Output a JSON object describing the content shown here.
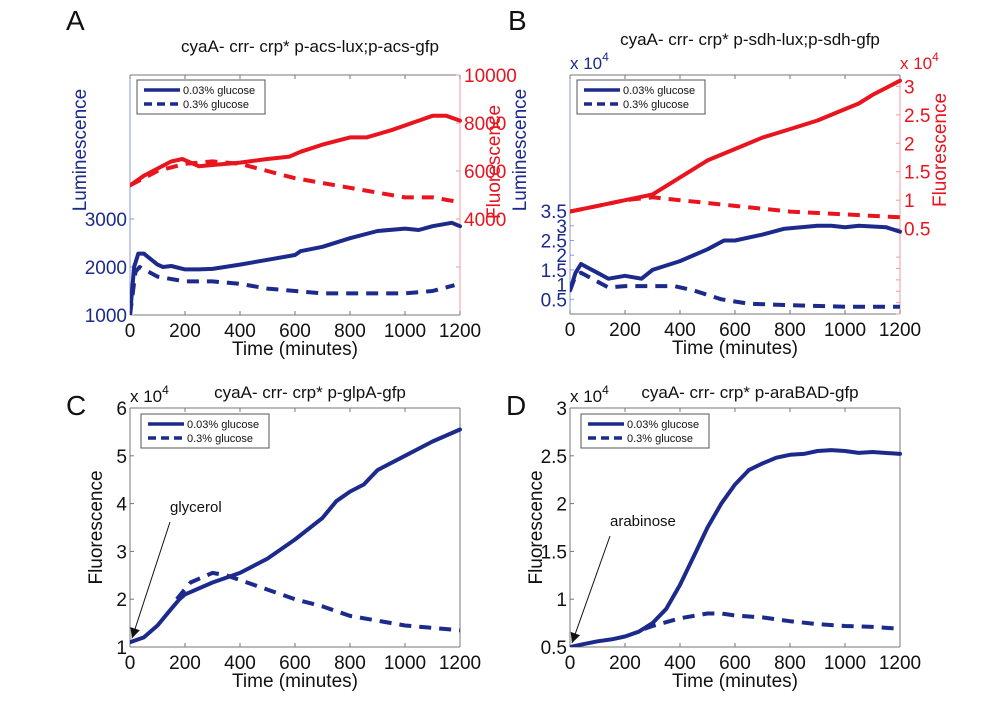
{
  "colors": {
    "blue": "#1c2a8c",
    "red": "#e8141e",
    "axis": "#555555",
    "black": "#111111"
  },
  "chart_data": [
    {
      "id": "A",
      "type": "line",
      "panel_label": "A",
      "title": "cyaA- crr- crp* p-acs-lux;p-acs-gfp",
      "xlabel": "Time (minutes)",
      "xlim": [
        0,
        1200
      ],
      "xticks": [
        0,
        200,
        400,
        600,
        800,
        1000,
        1200
      ],
      "xtick_labels": [
        "0",
        "200",
        "400",
        "600",
        "800",
        "1000",
        "1200"
      ],
      "left_axis": {
        "label": "Luminescence",
        "color": "blue",
        "ylim": [
          1000,
          6000
        ],
        "ticks": [
          1000,
          2000,
          3000
        ],
        "tick_labels": [
          "1000",
          "2000",
          "3000"
        ],
        "exponent": ""
      },
      "right_axis": {
        "label": "Fluorescence",
        "color": "red",
        "ylim": [
          0,
          10000
        ],
        "ticks": [
          2000,
          4000,
          6000,
          8000,
          10000
        ],
        "tick_labels": [
          "",
          "4000",
          "6000",
          "8000",
          "10000"
        ],
        "exponent": ""
      },
      "legend": {
        "position": "top-left",
        "entries": [
          "0.03% glucose",
          "0.3% glucose"
        ]
      },
      "series": [
        {
          "name": "0.03% glucose luminescence",
          "axis": "left",
          "color": "blue",
          "style": "solid",
          "x": [
            0,
            15,
            30,
            50,
            100,
            120,
            150,
            200,
            250,
            300,
            400,
            500,
            600,
            620,
            700,
            800,
            900,
            1000,
            1050,
            1100,
            1170,
            1200
          ],
          "y": [
            1000,
            2000,
            2280,
            2280,
            2050,
            2000,
            2020,
            1950,
            1950,
            1960,
            2050,
            2150,
            2250,
            2330,
            2420,
            2600,
            2750,
            2800,
            2770,
            2850,
            2920,
            2850
          ]
        },
        {
          "name": "0.3% glucose luminescence",
          "axis": "left",
          "color": "blue",
          "style": "dashed",
          "x": [
            0,
            20,
            35,
            100,
            200,
            300,
            400,
            500,
            600,
            700,
            800,
            900,
            1000,
            1100,
            1180
          ],
          "y": [
            1000,
            1900,
            2000,
            1800,
            1700,
            1700,
            1650,
            1550,
            1500,
            1450,
            1450,
            1450,
            1450,
            1500,
            1620
          ]
        },
        {
          "name": "0.03% glucose fluorescence",
          "axis": "right",
          "color": "red",
          "style": "solid",
          "x": [
            0,
            50,
            100,
            150,
            190,
            220,
            250,
            300,
            400,
            500,
            580,
            620,
            700,
            800,
            860,
            950,
            1050,
            1100,
            1150,
            1200
          ],
          "y": [
            5400,
            5800,
            6100,
            6400,
            6500,
            6350,
            6200,
            6250,
            6350,
            6500,
            6600,
            6800,
            7100,
            7400,
            7400,
            7700,
            8100,
            8300,
            8300,
            8100
          ]
        },
        {
          "name": "0.3% glucose fluorescence",
          "axis": "right",
          "color": "red",
          "style": "dashed",
          "x": [
            0,
            100,
            200,
            300,
            400,
            500,
            600,
            700,
            800,
            900,
            1000,
            1100,
            1200
          ],
          "y": [
            5400,
            6000,
            6300,
            6400,
            6300,
            6000,
            5700,
            5500,
            5300,
            5100,
            4900,
            4900,
            4700
          ]
        }
      ],
      "annotation": null
    },
    {
      "id": "B",
      "type": "line",
      "panel_label": "B",
      "title": "cyaA- crr- crp* p-sdh-lux;p-sdh-gfp",
      "xlabel": "Time (minutes)",
      "xlim": [
        0,
        1200
      ],
      "xticks": [
        0,
        200,
        400,
        600,
        800,
        1000,
        1200
      ],
      "xtick_labels": [
        "0",
        "200",
        "400",
        "600",
        "800",
        "1000",
        "1200"
      ],
      "left_axis": {
        "label": "Luminescence",
        "color": "blue",
        "ylim": [
          0,
          8.13
        ],
        "ticks": [
          0.5,
          1,
          1.5,
          2,
          2.5,
          3,
          3.5
        ],
        "tick_labels": [
          "0.5",
          "1",
          "1.5",
          "2",
          "2.5",
          "3",
          "3.5"
        ],
        "exponent": "x 10^4"
      },
      "right_axis": {
        "label": "Fluorescence",
        "color": "red",
        "ylim": [
          -1.0,
          3.2
        ],
        "ticks": [
          -1,
          -0.8,
          -0.6,
          -0.4,
          -0.2,
          0,
          0.5,
          1,
          1.5,
          2,
          2.5,
          3
        ],
        "tick_labels": [
          "",
          "",
          "",
          "",
          "",
          "",
          "0.5",
          "1",
          "1.5",
          "2",
          "2.5",
          "3"
        ],
        "exponent": "x 10^4"
      },
      "legend": {
        "position": "top-left",
        "entries": [
          "0.03% glucose",
          "0.3% glucose"
        ]
      },
      "series": [
        {
          "name": "0.03% glucose luminescence",
          "axis": "left",
          "color": "blue",
          "style": "solid",
          "x": [
            0,
            20,
            40,
            60,
            100,
            140,
            200,
            260,
            300,
            400,
            500,
            560,
            600,
            700,
            780,
            900,
            950,
            1000,
            1050,
            1150,
            1200
          ],
          "y": [
            0.8,
            1.4,
            1.7,
            1.6,
            1.4,
            1.2,
            1.3,
            1.2,
            1.5,
            1.8,
            2.2,
            2.5,
            2.5,
            2.7,
            2.9,
            3.0,
            3.0,
            2.95,
            3.0,
            2.95,
            2.8
          ]
        },
        {
          "name": "0.3% glucose luminescence",
          "axis": "left",
          "color": "blue",
          "style": "dashed",
          "x": [
            0,
            20,
            40,
            80,
            140,
            200,
            260,
            380,
            450,
            550,
            650,
            800,
            1000,
            1200
          ],
          "y": [
            0.8,
            1.3,
            1.4,
            1.2,
            0.9,
            0.95,
            0.95,
            0.95,
            0.8,
            0.5,
            0.35,
            0.3,
            0.25,
            0.25
          ]
        },
        {
          "name": "0.03% glucose fluorescence",
          "axis": "right",
          "color": "red",
          "style": "solid",
          "x": [
            0,
            100,
            200,
            300,
            400,
            500,
            600,
            700,
            800,
            900,
            1000,
            1050,
            1100,
            1200
          ],
          "y": [
            0.8,
            0.9,
            1.0,
            1.1,
            1.4,
            1.7,
            1.9,
            2.1,
            2.25,
            2.4,
            2.6,
            2.7,
            2.85,
            3.1
          ]
        },
        {
          "name": "0.3% glucose fluorescence",
          "axis": "right",
          "color": "red",
          "style": "dashed",
          "x": [
            0,
            100,
            200,
            300,
            400,
            500,
            600,
            700,
            800,
            1000,
            1200
          ],
          "y": [
            0.8,
            0.9,
            1.0,
            1.05,
            1.0,
            0.95,
            0.9,
            0.85,
            0.8,
            0.75,
            0.7
          ]
        }
      ],
      "annotation": null
    },
    {
      "id": "C",
      "type": "line",
      "panel_label": "C",
      "title": "cyaA- crr- crp* p-glpA-gfp",
      "xlabel": "Time (minutes)",
      "xlim": [
        0,
        1200
      ],
      "xticks": [
        0,
        200,
        400,
        600,
        800,
        1000,
        1200
      ],
      "xtick_labels": [
        "0",
        "200",
        "400",
        "600",
        "800",
        "1000",
        "1200"
      ],
      "left_axis": {
        "label": "Fluorescence",
        "color": "black",
        "ylim": [
          1,
          6
        ],
        "ticks": [
          1,
          2,
          3,
          4,
          5,
          6
        ],
        "tick_labels": [
          "1",
          "2",
          "3",
          "4",
          "5",
          "6"
        ],
        "exponent": "x 10^4"
      },
      "right_axis": null,
      "legend": {
        "position": "top-left",
        "entries": [
          "0.03% glucose",
          "0.3% glucose"
        ]
      },
      "series": [
        {
          "name": "0.03% glucose",
          "axis": "left",
          "color": "blue",
          "style": "solid",
          "x": [
            0,
            50,
            100,
            150,
            180,
            200,
            300,
            400,
            500,
            600,
            700,
            750,
            800,
            850,
            900,
            1000,
            1050,
            1100,
            1200
          ],
          "y": [
            1.1,
            1.2,
            1.45,
            1.8,
            2.0,
            2.1,
            2.35,
            2.55,
            2.85,
            3.25,
            3.7,
            4.05,
            4.25,
            4.4,
            4.7,
            5.0,
            5.15,
            5.3,
            5.55
          ]
        },
        {
          "name": "0.3% glucose",
          "axis": "left",
          "color": "blue",
          "style": "dashed",
          "x": [
            170,
            220,
            300,
            350,
            400,
            500,
            600,
            700,
            800,
            900,
            1000,
            1100,
            1200
          ],
          "y": [
            2.0,
            2.35,
            2.55,
            2.5,
            2.4,
            2.2,
            2.0,
            1.85,
            1.65,
            1.55,
            1.45,
            1.4,
            1.35
          ]
        }
      ],
      "annotation": {
        "text": "glycerol",
        "arrow_to": [
          0,
          1.1
        ]
      }
    },
    {
      "id": "D",
      "type": "line",
      "panel_label": "D",
      "title": "cyaA- crr- crp* p-araBAD-gfp",
      "xlabel": "Time (minutes)",
      "xlim": [
        0,
        1200
      ],
      "xticks": [
        0,
        200,
        400,
        600,
        800,
        1000,
        1200
      ],
      "xtick_labels": [
        "0",
        "200",
        "400",
        "600",
        "800",
        "1000",
        "1200"
      ],
      "left_axis": {
        "label": "Fluorescence",
        "color": "black",
        "ylim": [
          0.5,
          3
        ],
        "ticks": [
          0.5,
          1,
          1.5,
          2,
          2.5,
          3
        ],
        "tick_labels": [
          "0.5",
          "1",
          "1.5",
          "2",
          "2.5",
          "3"
        ],
        "exponent": "x 10^4"
      },
      "right_axis": null,
      "legend": {
        "position": "top-left",
        "entries": [
          "0.03% glucose",
          "0.3% glucose"
        ]
      },
      "series": [
        {
          "name": "0.03% glucose",
          "axis": "left",
          "color": "blue",
          "style": "solid",
          "x": [
            0,
            50,
            100,
            150,
            200,
            250,
            300,
            350,
            400,
            450,
            500,
            550,
            600,
            650,
            700,
            750,
            800,
            850,
            900,
            950,
            1000,
            1050,
            1100,
            1200
          ],
          "y": [
            0.5,
            0.53,
            0.56,
            0.58,
            0.61,
            0.66,
            0.75,
            0.9,
            1.15,
            1.45,
            1.75,
            2.0,
            2.2,
            2.35,
            2.42,
            2.48,
            2.51,
            2.52,
            2.55,
            2.56,
            2.55,
            2.53,
            2.54,
            2.52
          ]
        },
        {
          "name": "0.3% glucose",
          "axis": "left",
          "color": "blue",
          "style": "dashed",
          "x": [
            270,
            300,
            400,
            500,
            550,
            600,
            700,
            800,
            900,
            1000,
            1100,
            1200
          ],
          "y": [
            0.69,
            0.72,
            0.8,
            0.85,
            0.85,
            0.83,
            0.81,
            0.77,
            0.74,
            0.72,
            0.71,
            0.69
          ]
        }
      ],
      "annotation": {
        "text": "arabinose",
        "arrow_to": [
          0,
          0.5
        ]
      }
    }
  ]
}
